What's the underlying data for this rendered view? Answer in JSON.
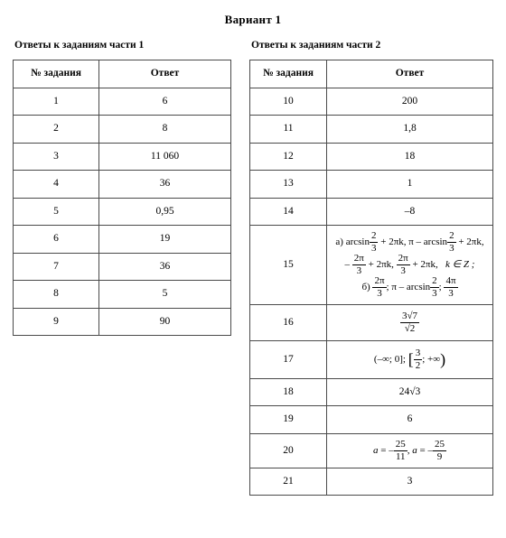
{
  "page": {
    "title": "Вариант 1",
    "background_color": "#ffffff",
    "text_color": "#000000",
    "border_color": "#4a4a4a",
    "font_family": "Times New Roman"
  },
  "left": {
    "caption": "Ответы к заданиям части 1",
    "columns": [
      "№ задания",
      "Ответ"
    ],
    "rows": [
      {
        "n": "1",
        "a": "6"
      },
      {
        "n": "2",
        "a": "8"
      },
      {
        "n": "3",
        "a": "11 060"
      },
      {
        "n": "4",
        "a": "36"
      },
      {
        "n": "5",
        "a": "0,95"
      },
      {
        "n": "6",
        "a": "19"
      },
      {
        "n": "7",
        "a": "36"
      },
      {
        "n": "8",
        "a": "5"
      },
      {
        "n": "9",
        "a": "90"
      }
    ]
  },
  "right": {
    "caption": "Ответы к заданиям части 2",
    "columns": [
      "№ задания",
      "Ответ"
    ],
    "rows": [
      {
        "n": "10",
        "a_text": "200"
      },
      {
        "n": "11",
        "a_text": "1,8"
      },
      {
        "n": "12",
        "a_text": "18"
      },
      {
        "n": "13",
        "a_text": "1"
      },
      {
        "n": "14",
        "a_text": "–8"
      },
      {
        "n": "15",
        "parts": {
          "a_label": "а)",
          "a_items": [
            {
              "pre": "arcsin",
              "frac": [
                "2",
                "3"
              ],
              "post": " + 2πk,"
            },
            {
              "pre": "π – arcsin",
              "frac": [
                "2",
                "3"
              ],
              "post": " + 2πk,"
            },
            {
              "pre": "– ",
              "frac": [
                "2π",
                "3"
              ],
              "post": " + 2πk,"
            },
            {
              "pre": "",
              "frac": [
                "2π",
                "3"
              ],
              "post": " + 2πk,"
            },
            {
              "plain": "k ∈ Z ;"
            }
          ],
          "b_label": "б)",
          "b_items": [
            {
              "frac": [
                "2π",
                "3"
              ],
              "post": ";"
            },
            {
              "pre": " π – arcsin",
              "frac": [
                "2",
                "3"
              ],
              "post": ";"
            },
            {
              "frac": [
                "4π",
                "3"
              ]
            }
          ]
        }
      },
      {
        "n": "16",
        "a_frac": [
          "3√7",
          "√2"
        ]
      },
      {
        "n": "17",
        "a_interval": {
          "left": "(–∞; 0]",
          "sep": "; ",
          "right_num": "3",
          "right_den": "2",
          "right_tail": "; +∞"
        }
      },
      {
        "n": "18",
        "a_text": "24√3"
      },
      {
        "n": "19",
        "a_text": "6"
      },
      {
        "n": "20",
        "a_eq": {
          "var1": "a = –",
          "f1": [
            "25",
            "11"
          ],
          "mid": ", a = –",
          "f2": [
            "25",
            "9"
          ]
        }
      },
      {
        "n": "21",
        "a_text": "3"
      }
    ]
  }
}
